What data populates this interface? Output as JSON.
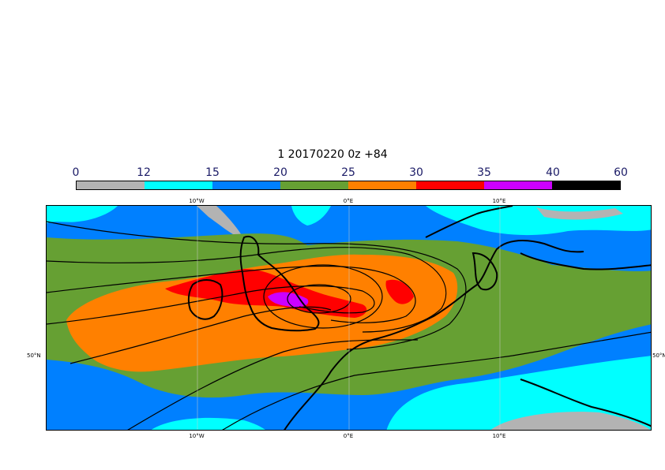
{
  "title": "1 20170220 0z +84",
  "legend": {
    "labels": [
      "0",
      "12",
      "15",
      "20",
      "25",
      "30",
      "35",
      "40",
      "60"
    ],
    "colors": [
      "#b3b3b3",
      "#00ffff",
      "#0080ff",
      "#66a033",
      "#ff8000",
      "#ff0000",
      "#cc00ff",
      "#000000"
    ]
  },
  "map": {
    "top_ticks": [
      "10°W",
      "0°E",
      "10°E"
    ],
    "bottom_ticks": [
      "10°W",
      "0°E",
      "10°E"
    ],
    "lat_left": "50°N",
    "lat_right": "50°N",
    "fill_colors": {
      "gray": "#b3b3b3",
      "cyan": "#00ffff",
      "blue": "#0080ff",
      "green": "#66a033",
      "orange": "#ff8000",
      "red": "#ff0000",
      "magenta": "#cc00ff",
      "black": "#000000"
    }
  }
}
